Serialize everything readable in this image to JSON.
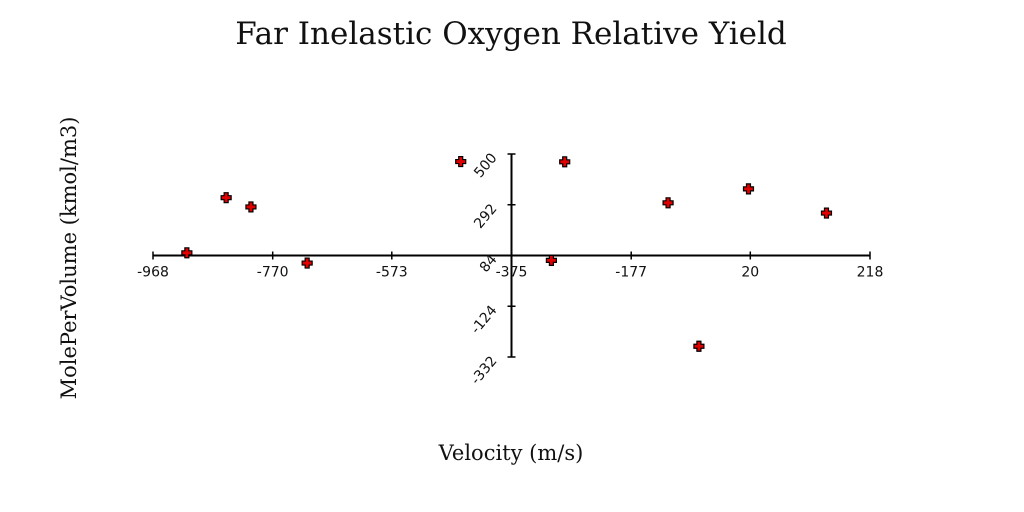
{
  "chart_data": {
    "type": "scatter",
    "title": "Far Inelastic Oxygen Relative Yield",
    "xlabel": "Velocity (m/s)",
    "ylabel": "MolePerVolume (kmol/m3)",
    "xlim": [
      -968,
      218
    ],
    "ylim": [
      -332,
      500
    ],
    "x_ticks": [
      "-968",
      "-770",
      "-573",
      "-375",
      "-177",
      "20",
      "218"
    ],
    "y_ticks": [
      "500",
      "292",
      "84",
      "-124",
      "-332"
    ],
    "grid": false,
    "legend": "none",
    "marker_color": "#e00000",
    "series": [
      {
        "x": [
          -912,
          -847,
          -806,
          -713,
          -459,
          -309,
          -287,
          -116,
          -65,
          17,
          146
        ],
        "y": [
          95,
          321,
          283,
          53,
          469,
          64,
          468,
          300,
          -288,
          357,
          258
        ]
      }
    ]
  }
}
